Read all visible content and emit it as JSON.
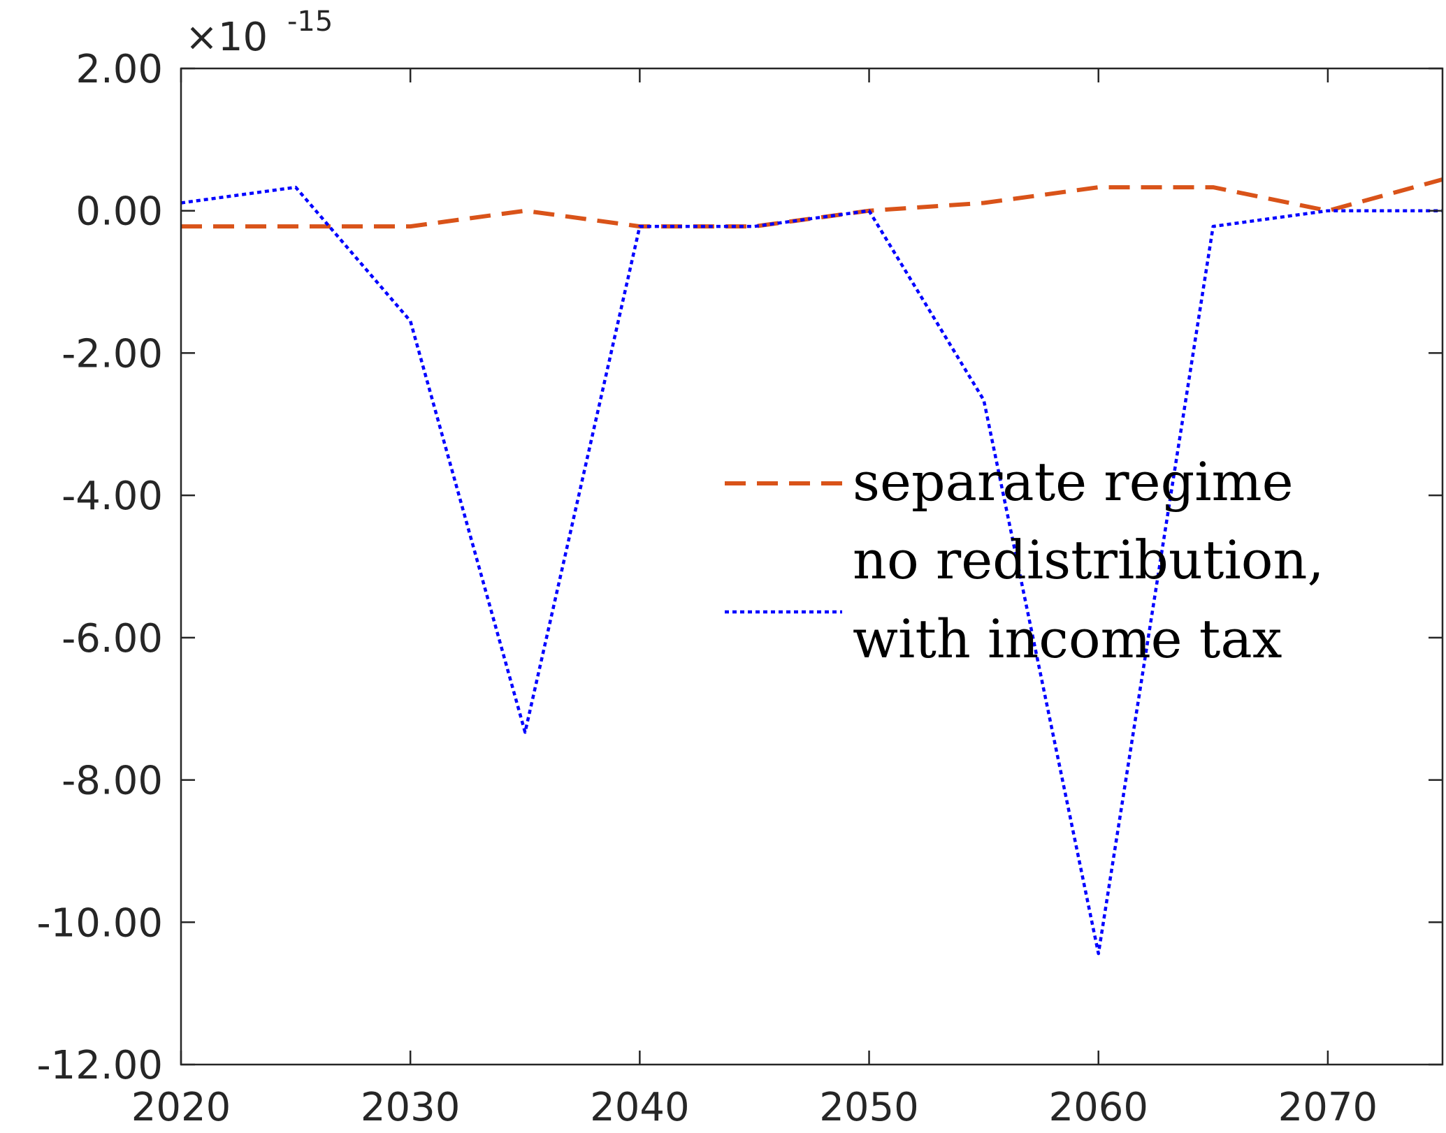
{
  "chart_data": {
    "type": "line",
    "title": "",
    "xlabel": "",
    "ylabel": "",
    "y_exponent_label": "×10",
    "y_exponent_power": "-15",
    "xlim": [
      2020,
      2075
    ],
    "ylim": [
      -12,
      2
    ],
    "x_ticks": [
      2020,
      2030,
      2040,
      2050,
      2060,
      2070
    ],
    "x_tick_labels": [
      "2020",
      "2030",
      "2040",
      "2050",
      "2060",
      "2070"
    ],
    "y_ticks": [
      2,
      0,
      -2,
      -4,
      -6,
      -8,
      -10,
      -12
    ],
    "y_tick_labels": [
      "2.00",
      "0.00",
      "-2.00",
      "-4.00",
      "-6.00",
      "-8.00",
      "-10.00",
      "-12.00"
    ],
    "grid": false,
    "legend_position": "center-right",
    "x": [
      2020,
      2025,
      2030,
      2035,
      2040,
      2045,
      2050,
      2055,
      2060,
      2065,
      2070,
      2075
    ],
    "series": [
      {
        "name": "separate regime",
        "color": "#D95319",
        "dash": "dashed",
        "values": [
          -0.22,
          -0.22,
          -0.22,
          0.0,
          -0.22,
          -0.22,
          0.0,
          0.11,
          0.33,
          0.33,
          0.0,
          0.44
        ]
      },
      {
        "name": "no redistribution, with income tax",
        "legend_lines": [
          "no redistribution,",
          "with income tax"
        ],
        "color": "#0000FF",
        "dash": "dotted",
        "values": [
          0.11,
          0.33,
          -1.55,
          -7.33,
          -0.22,
          -0.22,
          0.0,
          -2.66,
          -10.44,
          -0.22,
          0.0,
          0.0
        ]
      }
    ]
  }
}
